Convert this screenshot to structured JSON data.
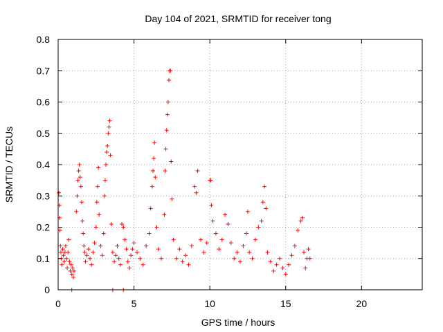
{
  "chart_data": {
    "type": "scatter",
    "title": "Day 104 of 2021, SRMTID for receiver tong",
    "xlabel": "GPS time / hours",
    "ylabel": "SRMTID / TECUs",
    "xlim": [
      0,
      24
    ],
    "ylim": [
      0,
      0.8
    ],
    "xticks": [
      0,
      5,
      10,
      15,
      20
    ],
    "yticks": [
      0,
      0.1,
      0.2,
      0.3,
      0.4,
      0.5,
      0.6,
      0.7,
      0.8
    ],
    "xtick_labels": [
      "0",
      "5",
      "10",
      "15",
      "20"
    ],
    "ytick_labels": [
      "0",
      "0.1",
      "0.2",
      "0.3",
      "0.4",
      "0.5",
      "0.6",
      "0.7",
      "0.8"
    ],
    "grid": true,
    "series": [
      {
        "name": "SRMTID",
        "marker": "plus",
        "color": "#ff0000",
        "points": [
          [
            0.05,
            0.31
          ],
          [
            0.08,
            0.27
          ],
          [
            0.1,
            0.23
          ],
          [
            0.12,
            0.19
          ],
          [
            0.15,
            0.14
          ],
          [
            0.18,
            0.12
          ],
          [
            0.2,
            0.1
          ],
          [
            0.25,
            0.08
          ],
          [
            0.3,
            0.13
          ],
          [
            0.35,
            0.11
          ],
          [
            0.4,
            0.09
          ],
          [
            0.45,
            0.12
          ],
          [
            0.5,
            0.14
          ],
          [
            0.55,
            0.1
          ],
          [
            0.6,
            0.07
          ],
          [
            0.65,
            0.12
          ],
          [
            0.7,
            0.16
          ],
          [
            0.75,
            0.09
          ],
          [
            0.8,
            0.06
          ],
          [
            0.85,
            0.08
          ],
          [
            0.9,
            0.05
          ],
          [
            0.95,
            0.07
          ],
          [
            1.0,
            0.04
          ],
          [
            1.05,
            0.06
          ],
          [
            1.2,
            0.25
          ],
          [
            1.25,
            0.3
          ],
          [
            1.3,
            0.35
          ],
          [
            1.35,
            0.38
          ],
          [
            1.4,
            0.4
          ],
          [
            1.45,
            0.36
          ],
          [
            1.5,
            0.33
          ],
          [
            1.55,
            0.28
          ],
          [
            1.6,
            0.22
          ],
          [
            1.65,
            0.18
          ],
          [
            1.7,
            0.14
          ],
          [
            1.75,
            0.12
          ],
          [
            1.8,
            0.09
          ],
          [
            1.9,
            0.11
          ],
          [
            2.0,
            0.13
          ],
          [
            2.1,
            0.1
          ],
          [
            2.2,
            0.08
          ],
          [
            2.3,
            0.12
          ],
          [
            2.4,
            0.15
          ],
          [
            2.5,
            0.2
          ],
          [
            2.55,
            0.28
          ],
          [
            2.6,
            0.33
          ],
          [
            2.65,
            0.39
          ],
          [
            2.7,
            0.24
          ],
          [
            2.8,
            0.14
          ],
          [
            2.9,
            0.11
          ],
          [
            3.0,
            0.18
          ],
          [
            3.05,
            0.3
          ],
          [
            3.1,
            0.35
          ],
          [
            3.15,
            0.4
          ],
          [
            3.2,
            0.44
          ],
          [
            3.25,
            0.46
          ],
          [
            3.3,
            0.5
          ],
          [
            3.35,
            0.52
          ],
          [
            3.4,
            0.54
          ],
          [
            3.45,
            0.43
          ],
          [
            3.5,
            0.21
          ],
          [
            3.6,
            0.12
          ],
          [
            3.7,
            0.09
          ],
          [
            3.8,
            0.11
          ],
          [
            3.9,
            0.14
          ],
          [
            4.0,
            0.1
          ],
          [
            4.1,
            0.08
          ],
          [
            4.2,
            0.21
          ],
          [
            4.3,
            0.2
          ],
          [
            4.4,
            0.16
          ],
          [
            4.5,
            0.13
          ],
          [
            4.6,
            0.09
          ],
          [
            4.7,
            0.07
          ],
          [
            4.8,
            0.11
          ],
          [
            4.9,
            0.13
          ],
          [
            5.0,
            0.15
          ],
          [
            5.2,
            0.12
          ],
          [
            5.4,
            0.1
          ],
          [
            5.6,
            0.08
          ],
          [
            5.8,
            0.14
          ],
          [
            6.0,
            0.18
          ],
          [
            6.1,
            0.26
          ],
          [
            6.2,
            0.33
          ],
          [
            6.25,
            0.38
          ],
          [
            6.3,
            0.42
          ],
          [
            6.35,
            0.47
          ],
          [
            6.4,
            0.36
          ],
          [
            6.5,
            0.2
          ],
          [
            6.6,
            0.13
          ],
          [
            6.8,
            0.1
          ],
          [
            7.0,
            0.24
          ],
          [
            7.05,
            0.38
          ],
          [
            7.1,
            0.45
          ],
          [
            7.15,
            0.51
          ],
          [
            7.2,
            0.56
          ],
          [
            7.25,
            0.6
          ],
          [
            7.3,
            0.67
          ],
          [
            7.35,
            0.7
          ],
          [
            7.4,
            0.7
          ],
          [
            7.45,
            0.41
          ],
          [
            7.5,
            0.29
          ],
          [
            7.6,
            0.16
          ],
          [
            7.8,
            0.1
          ],
          [
            8.0,
            0.13
          ],
          [
            8.2,
            0.09
          ],
          [
            8.4,
            0.11
          ],
          [
            8.6,
            0.08
          ],
          [
            8.8,
            0.14
          ],
          [
            9.0,
            0.33
          ],
          [
            9.1,
            0.31
          ],
          [
            9.2,
            0.38
          ],
          [
            9.4,
            0.16
          ],
          [
            9.6,
            0.12
          ],
          [
            9.8,
            0.15
          ],
          [
            10.0,
            0.35
          ],
          [
            10.05,
            0.35
          ],
          [
            10.1,
            0.27
          ],
          [
            10.2,
            0.22
          ],
          [
            10.4,
            0.18
          ],
          [
            10.6,
            0.13
          ],
          [
            10.8,
            0.16
          ],
          [
            11.0,
            0.24
          ],
          [
            11.2,
            0.21
          ],
          [
            11.4,
            0.15
          ],
          [
            11.6,
            0.1
          ],
          [
            11.8,
            0.12
          ],
          [
            12.0,
            0.09
          ],
          [
            12.2,
            0.14
          ],
          [
            12.4,
            0.18
          ],
          [
            12.5,
            0.25
          ],
          [
            12.6,
            0.12
          ],
          [
            12.8,
            0.1
          ],
          [
            13.0,
            0.16
          ],
          [
            13.2,
            0.2
          ],
          [
            13.4,
            0.22
          ],
          [
            13.5,
            0.28
          ],
          [
            13.6,
            0.33
          ],
          [
            13.7,
            0.26
          ],
          [
            13.8,
            0.12
          ],
          [
            14.0,
            0.09
          ],
          [
            14.2,
            0.06
          ],
          [
            14.4,
            0.08
          ],
          [
            14.6,
            0.1
          ],
          [
            14.8,
            0.07
          ],
          [
            15.0,
            0.05
          ],
          [
            15.2,
            0.08
          ],
          [
            15.4,
            0.11
          ],
          [
            15.6,
            0.14
          ],
          [
            15.8,
            0.19
          ],
          [
            16.0,
            0.22
          ],
          [
            16.1,
            0.23
          ],
          [
            16.2,
            0.12
          ],
          [
            16.3,
            0.07
          ],
          [
            16.4,
            0.1
          ],
          [
            16.5,
            0.13
          ],
          [
            16.6,
            0.1
          ],
          [
            0.9,
            0.0
          ],
          [
            3.6,
            0.0
          ],
          [
            4.3,
            0.0
          ]
        ]
      }
    ]
  }
}
